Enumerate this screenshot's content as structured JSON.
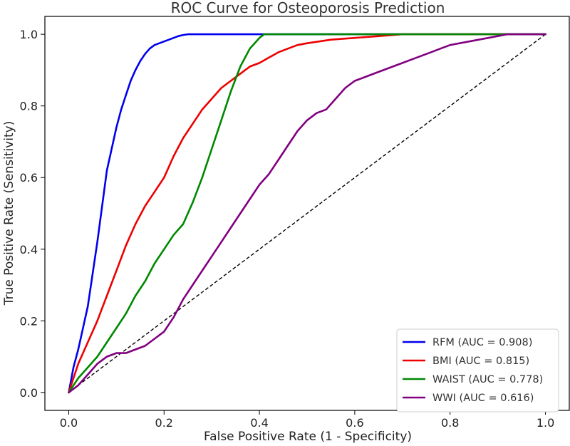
{
  "chart_data": {
    "type": "line",
    "title": "ROC Curve for Osteoporosis Prediction",
    "xlabel": "False Positive Rate (1 - Specificity)",
    "ylabel": "True Positive Rate (Sensitivity)",
    "xlim": [
      -0.05,
      1.05
    ],
    "ylim": [
      -0.05,
      1.05
    ],
    "xticks": [
      0.0,
      0.2,
      0.4,
      0.6,
      0.8,
      1.0
    ],
    "yticks": [
      0.0,
      0.2,
      0.4,
      0.6,
      0.8,
      1.0
    ],
    "xtick_labels": [
      "0.0",
      "0.2",
      "0.4",
      "0.6",
      "0.8",
      "1.0"
    ],
    "ytick_labels": [
      "0.0",
      "0.2",
      "0.4",
      "0.6",
      "0.8",
      "1.0"
    ],
    "legend_position": "bottom-right",
    "diagonal": {
      "x": [
        0,
        1
      ],
      "y": [
        0,
        1
      ],
      "style": "dashed",
      "color": "#000000"
    },
    "series": [
      {
        "name": "RFM",
        "auc": "0.908",
        "label": "RFM (AUC = 0.908)",
        "color": "#0000ee",
        "x": [
          0,
          0.01,
          0.02,
          0.03,
          0.04,
          0.05,
          0.06,
          0.07,
          0.08,
          0.09,
          0.1,
          0.11,
          0.12,
          0.13,
          0.14,
          0.15,
          0.16,
          0.17,
          0.18,
          0.19,
          0.2,
          0.21,
          0.22,
          0.23,
          0.24,
          0.25,
          0.3,
          0.4,
          0.5,
          0.6,
          0.7,
          0.8,
          0.9,
          1.0
        ],
        "y": [
          0,
          0.07,
          0.12,
          0.18,
          0.24,
          0.33,
          0.42,
          0.52,
          0.62,
          0.68,
          0.74,
          0.79,
          0.83,
          0.87,
          0.9,
          0.925,
          0.945,
          0.96,
          0.97,
          0.975,
          0.98,
          0.985,
          0.99,
          0.995,
          0.998,
          1.0,
          1.0,
          1.0,
          1.0,
          1.0,
          1.0,
          1.0,
          1.0,
          1.0
        ]
      },
      {
        "name": "BMI",
        "auc": "0.815",
        "label": "BMI (AUC = 0.815)",
        "color": "#ee0000",
        "x": [
          0,
          0.02,
          0.04,
          0.06,
          0.08,
          0.1,
          0.12,
          0.14,
          0.16,
          0.18,
          0.2,
          0.22,
          0.24,
          0.26,
          0.28,
          0.3,
          0.32,
          0.34,
          0.36,
          0.38,
          0.4,
          0.42,
          0.44,
          0.46,
          0.48,
          0.5,
          0.55,
          0.6,
          0.65,
          0.7,
          0.8,
          0.9,
          1.0
        ],
        "y": [
          0,
          0.08,
          0.14,
          0.2,
          0.27,
          0.34,
          0.41,
          0.47,
          0.52,
          0.56,
          0.6,
          0.66,
          0.71,
          0.75,
          0.79,
          0.82,
          0.85,
          0.87,
          0.89,
          0.91,
          0.92,
          0.935,
          0.95,
          0.96,
          0.97,
          0.975,
          0.985,
          0.99,
          0.995,
          1.0,
          1.0,
          1.0,
          1.0
        ]
      },
      {
        "name": "WAIST",
        "auc": "0.778",
        "label": "WAIST (AUC = 0.778)",
        "color": "#008800",
        "x": [
          0,
          0.02,
          0.04,
          0.06,
          0.08,
          0.1,
          0.12,
          0.14,
          0.16,
          0.18,
          0.2,
          0.22,
          0.24,
          0.26,
          0.28,
          0.3,
          0.32,
          0.34,
          0.36,
          0.38,
          0.4,
          0.41,
          0.5,
          0.6,
          0.7,
          0.8,
          0.9,
          1.0
        ],
        "y": [
          0,
          0.04,
          0.07,
          0.1,
          0.14,
          0.18,
          0.22,
          0.27,
          0.31,
          0.36,
          0.4,
          0.44,
          0.47,
          0.53,
          0.6,
          0.68,
          0.76,
          0.84,
          0.91,
          0.96,
          0.99,
          1.0,
          1.0,
          1.0,
          1.0,
          1.0,
          1.0,
          1.0
        ]
      },
      {
        "name": "WWI",
        "auc": "0.616",
        "label": "WWI (AUC = 0.616)",
        "color": "#800080",
        "x": [
          0,
          0.02,
          0.04,
          0.06,
          0.08,
          0.1,
          0.12,
          0.14,
          0.16,
          0.18,
          0.2,
          0.22,
          0.24,
          0.26,
          0.28,
          0.3,
          0.32,
          0.34,
          0.36,
          0.38,
          0.4,
          0.42,
          0.44,
          0.46,
          0.48,
          0.5,
          0.52,
          0.54,
          0.56,
          0.58,
          0.6,
          0.62,
          0.64,
          0.66,
          0.68,
          0.7,
          0.72,
          0.74,
          0.76,
          0.78,
          0.8,
          0.84,
          0.88,
          0.92,
          0.96,
          1.0
        ],
        "y": [
          0,
          0.02,
          0.05,
          0.08,
          0.1,
          0.11,
          0.11,
          0.12,
          0.13,
          0.15,
          0.17,
          0.21,
          0.26,
          0.3,
          0.34,
          0.38,
          0.42,
          0.46,
          0.5,
          0.54,
          0.58,
          0.61,
          0.65,
          0.69,
          0.73,
          0.76,
          0.78,
          0.79,
          0.82,
          0.85,
          0.87,
          0.88,
          0.89,
          0.9,
          0.91,
          0.92,
          0.93,
          0.94,
          0.95,
          0.96,
          0.97,
          0.98,
          0.99,
          1.0,
          1.0,
          1.0
        ]
      }
    ]
  }
}
